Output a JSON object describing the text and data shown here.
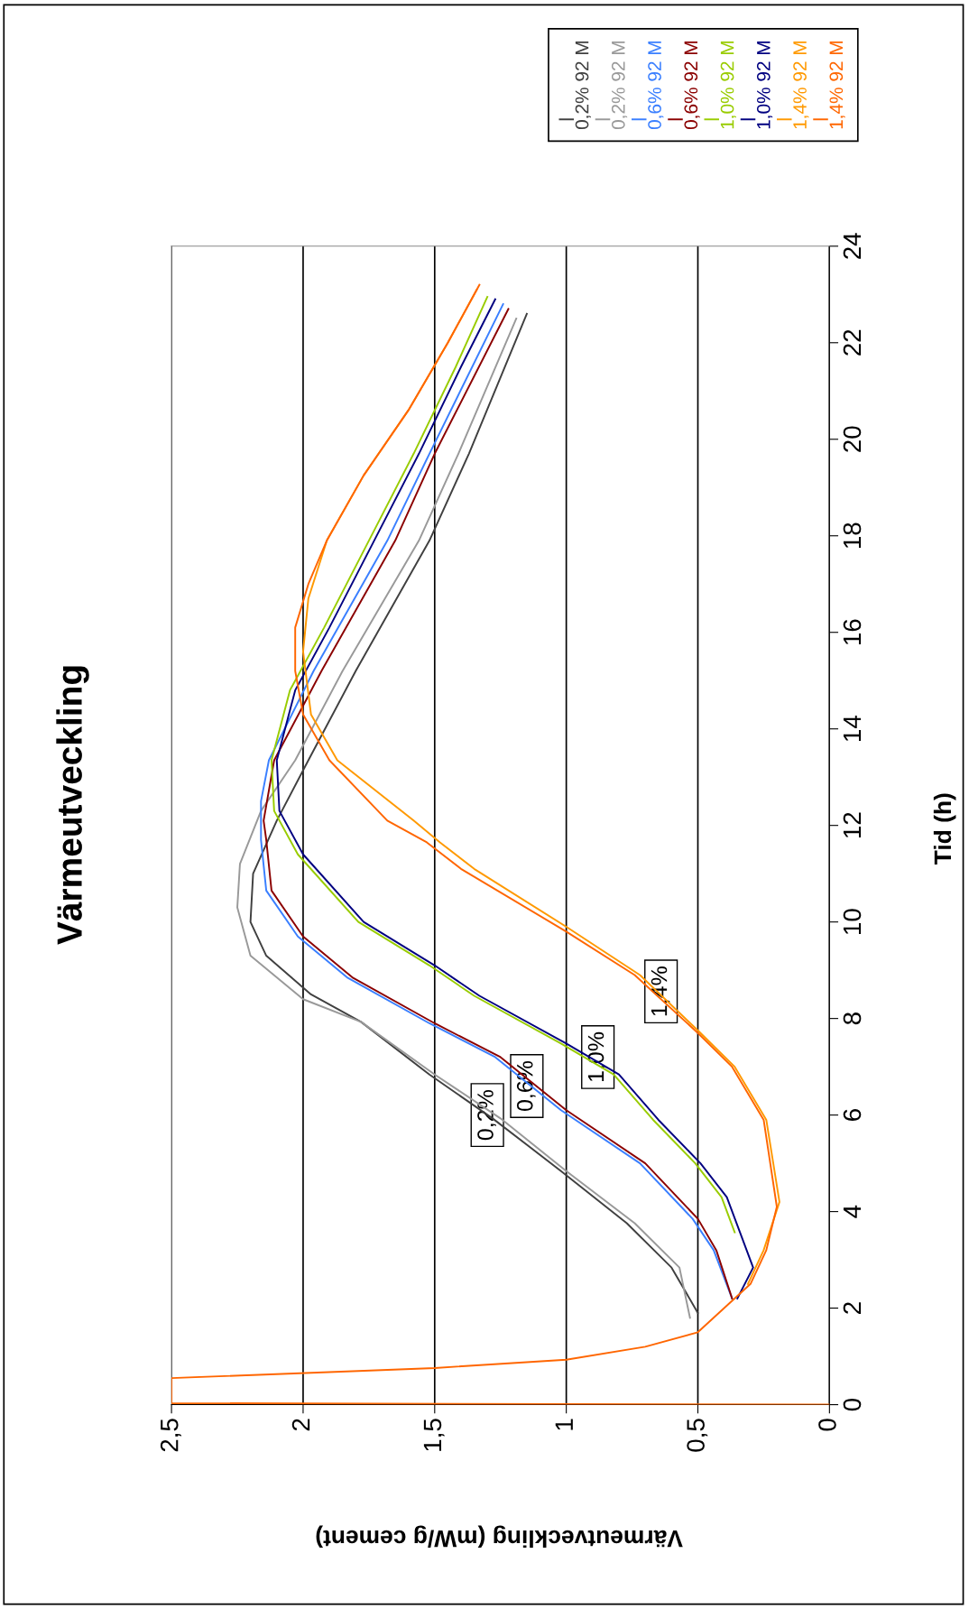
{
  "chart_data": {
    "type": "line",
    "title": "Värmeutveckling",
    "ylabel": "Tid (h)",
    "xlabel": "Värmeutveckling (mW/g cement)",
    "ylim": [
      0,
      24
    ],
    "yticks": [
      0,
      2,
      4,
      6,
      8,
      10,
      12,
      14,
      16,
      18,
      20,
      22,
      24
    ],
    "xlim": [
      2.5,
      0
    ],
    "xticks": [
      {
        "value": 2.5,
        "label": "2,5"
      },
      2,
      {
        "value": 1.5,
        "label": "1,5"
      },
      1,
      {
        "value": 0.5,
        "label": "0,5"
      },
      0
    ],
    "grid": "x",
    "legend": "top right",
    "marker": "none",
    "line_style": "solid",
    "series": [
      {
        "name": "0,2% 92 M",
        "color": "#404040",
        "values": [
          1.9,
          2.84,
          3.76,
          4.84,
          5.93,
          6.84,
          7.93,
          8.5,
          9.3,
          10.0,
          11.0,
          12.1,
          13.35,
          15.2,
          17.9,
          19.7,
          22.6
        ],
        "x": [
          0.5,
          0.6,
          0.77,
          1.02,
          1.28,
          1.52,
          1.78,
          1.97,
          2.14,
          2.2,
          2.19,
          2.1,
          1.98,
          1.8,
          1.52,
          1.37,
          1.15
        ]
      },
      {
        "name": "0,2% 92 M",
        "color": "#999999",
        "values": [
          1.8,
          2.84,
          3.76,
          4.84,
          5.93,
          6.84,
          7.93,
          8.4,
          9.3,
          10.3,
          11.2,
          12.3,
          13.35,
          15.2,
          17.9,
          19.7,
          22.5
        ],
        "x": [
          0.53,
          0.57,
          0.74,
          1.0,
          1.25,
          1.5,
          1.78,
          2.0,
          2.2,
          2.25,
          2.24,
          2.16,
          2.03,
          1.85,
          1.56,
          1.41,
          1.19
        ]
      },
      {
        "name": "0,6% 92 M",
        "color": "#3a7fff",
        "values": [
          2.2,
          3.2,
          3.85,
          5.0,
          6.1,
          7.2,
          7.9,
          8.84,
          9.7,
          10.65,
          11.7,
          12.5,
          13.35,
          15.2,
          17.9,
          19.7,
          22.8
        ],
        "x": [
          0.37,
          0.44,
          0.52,
          0.72,
          1.02,
          1.27,
          1.52,
          1.83,
          2.02,
          2.14,
          2.16,
          2.16,
          2.13,
          1.96,
          1.68,
          1.52,
          1.24
        ]
      },
      {
        "name": "0,6% 92 M",
        "color": "#8b0000",
        "values": [
          2.2,
          3.2,
          3.85,
          5.0,
          6.1,
          7.2,
          7.9,
          8.84,
          9.7,
          10.65,
          11.7,
          12.1,
          13.35,
          15.2,
          17.9,
          19.7,
          22.7
        ],
        "x": [
          0.37,
          0.43,
          0.5,
          0.7,
          1.0,
          1.25,
          1.5,
          1.81,
          2.0,
          2.12,
          2.14,
          2.15,
          2.11,
          1.93,
          1.65,
          1.5,
          1.22
        ]
      },
      {
        "name": "1,0% 92 M",
        "color": "#99cc00",
        "values": [
          3.57,
          4.3,
          5.0,
          5.9,
          6.84,
          7.48,
          8.47,
          9.1,
          10.0,
          11.4,
          12.3,
          13.35,
          14.8,
          16.1,
          17.9,
          19.7,
          21.5,
          22.95
        ],
        "x": [
          0.36,
          0.41,
          0.51,
          0.67,
          0.82,
          1.02,
          1.35,
          1.52,
          1.79,
          2.02,
          2.11,
          2.12,
          2.05,
          1.92,
          1.75,
          1.58,
          1.42,
          1.3
        ]
      },
      {
        "name": "1,0% 92 M",
        "color": "#000080",
        "values": [
          2.2,
          2.84,
          3.57,
          4.3,
          5.0,
          5.9,
          6.84,
          7.48,
          8.47,
          9.1,
          10.0,
          11.4,
          12.3,
          13.35,
          14.8,
          16.1,
          17.9,
          19.7,
          21.5,
          22.9
        ],
        "x": [
          0.35,
          0.29,
          0.34,
          0.39,
          0.49,
          0.65,
          0.8,
          1.0,
          1.33,
          1.5,
          1.77,
          2.0,
          2.09,
          2.1,
          2.03,
          1.9,
          1.73,
          1.56,
          1.4,
          1.27
        ]
      },
      {
        "name": "1,4% 92 M",
        "color": "#ff9900",
        "values": [
          2.5,
          3.2,
          4.2,
          5.9,
          7.0,
          7.7,
          8.9,
          9.9,
          11.1,
          11.65,
          12.1,
          13.35,
          14.3,
          15.6,
          16.7,
          17.9,
          19.25,
          20.6,
          22.0,
          23.1
        ],
        "x": [
          0.31,
          0.25,
          0.19,
          0.24,
          0.36,
          0.49,
          0.72,
          1.0,
          1.35,
          1.48,
          1.58,
          1.87,
          1.97,
          2.0,
          1.98,
          1.91,
          1.77,
          1.6,
          1.45,
          1.34
        ]
      },
      {
        "name": "1,4% 92 M",
        "color": "#ff6600",
        "values": [
          0,
          0.03,
          0.55,
          0.76,
          0.93,
          1.2,
          1.5,
          2.5,
          3.2,
          4.1,
          5.9,
          7.0,
          7.7,
          8.9,
          9.8,
          11.1,
          11.65,
          12.1,
          13.35,
          14.3,
          15.2,
          16.1,
          17.0,
          17.9,
          19.25,
          20.6,
          22.0,
          23.2
        ],
        "x": [
          0,
          2.5,
          2.5,
          1.5,
          1.0,
          0.7,
          0.5,
          0.3,
          0.24,
          0.2,
          0.25,
          0.37,
          0.5,
          0.74,
          1.0,
          1.4,
          1.53,
          1.68,
          1.9,
          2.0,
          2.03,
          2.03,
          1.98,
          1.91,
          1.77,
          1.6,
          1.45,
          1.33
        ]
      }
    ],
    "annotations": [
      {
        "text": "0,2%",
        "x": 1.3,
        "y": 6.0
      },
      {
        "text": "0,6%",
        "x": 1.15,
        "y": 6.6
      },
      {
        "text": "1,0%",
        "x": 0.88,
        "y": 7.2
      },
      {
        "text": "1,4%",
        "x": 0.64,
        "y": 8.56
      }
    ]
  }
}
